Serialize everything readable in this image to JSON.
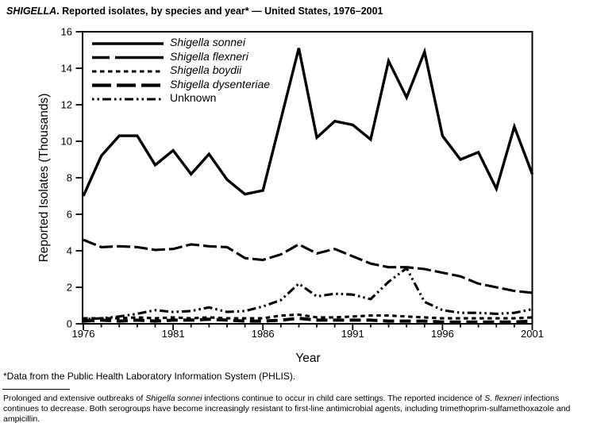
{
  "title": {
    "parts": [
      {
        "t": "SHIGELLA",
        "i": true
      },
      {
        "t": ". Reported isolates, by species and year* — United States, 1976–2001"
      }
    ]
  },
  "chart_data": {
    "type": "line",
    "title": "SHIGELLA. Reported isolates, by species and year* — United States, 1976–2001",
    "xlabel": "Year",
    "ylabel": "Reported Isolates (Thousands)",
    "xlim": [
      1976,
      2001
    ],
    "ylim": [
      0,
      16
    ],
    "yticks": [
      0,
      2,
      4,
      6,
      8,
      10,
      12,
      14,
      16
    ],
    "xticks_labeled": [
      1976,
      1981,
      1986,
      1991,
      1996,
      2001
    ],
    "grid": false,
    "legend_position": "top-left-inside",
    "line_color": "#000000",
    "background": "#ffffff",
    "x": [
      1976,
      1977,
      1978,
      1979,
      1980,
      1981,
      1982,
      1983,
      1984,
      1985,
      1986,
      1987,
      1988,
      1989,
      1990,
      1991,
      1992,
      1993,
      1994,
      1995,
      1996,
      1997,
      1998,
      1999,
      2000,
      2001
    ],
    "series": [
      {
        "name": "Shigella sonnei",
        "line_style": "solid",
        "values": [
          7.0,
          9.2,
          10.3,
          10.3,
          8.7,
          9.5,
          8.2,
          9.3,
          7.9,
          7.1,
          7.3,
          11.2,
          15.1,
          10.2,
          11.1,
          10.9,
          10.1,
          14.4,
          12.4,
          14.9,
          10.3,
          9.0,
          9.4,
          7.4,
          10.8,
          8.2
        ]
      },
      {
        "name": "Shigella flexneri",
        "line_style": "long-dash",
        "values": [
          4.6,
          4.2,
          4.25,
          4.2,
          4.05,
          4.1,
          4.35,
          4.25,
          4.2,
          3.6,
          3.5,
          3.8,
          4.35,
          3.85,
          4.1,
          3.7,
          3.3,
          3.1,
          3.1,
          3.0,
          2.8,
          2.6,
          2.2,
          2.0,
          1.8,
          1.7
        ]
      },
      {
        "name": "Shigella boydii",
        "line_style": "short-dash",
        "values": [
          0.3,
          0.3,
          0.3,
          0.35,
          0.3,
          0.35,
          0.3,
          0.35,
          0.3,
          0.3,
          0.3,
          0.45,
          0.5,
          0.35,
          0.35,
          0.4,
          0.45,
          0.45,
          0.4,
          0.35,
          0.3,
          0.3,
          0.3,
          0.3,
          0.3,
          0.35
        ]
      },
      {
        "name": "Shigella dysenteriae",
        "line_style": "heavy-long-dash",
        "values": [
          0.15,
          0.2,
          0.15,
          0.2,
          0.15,
          0.2,
          0.2,
          0.25,
          0.2,
          0.15,
          0.15,
          0.2,
          0.3,
          0.2,
          0.2,
          0.2,
          0.2,
          0.15,
          0.15,
          0.15,
          0.1,
          0.1,
          0.1,
          0.1,
          0.1,
          0.15
        ]
      },
      {
        "name": "Unknown",
        "line_style": "dash-dot-dot",
        "values": [
          0.25,
          0.3,
          0.4,
          0.55,
          0.75,
          0.65,
          0.7,
          0.9,
          0.65,
          0.7,
          0.95,
          1.3,
          2.2,
          1.5,
          1.65,
          1.6,
          1.35,
          2.3,
          3.05,
          1.2,
          0.75,
          0.6,
          0.6,
          0.55,
          0.6,
          0.8
        ]
      }
    ]
  },
  "footnotes": {
    "source": "*Data from the Public Health Laboratory Information System (PHLIS).",
    "note_parts": [
      {
        "t": "Prolonged and extensive outbreaks of "
      },
      {
        "t": "Shigella sonnei",
        "i": true
      },
      {
        "t": " infections continue to occur in child care settings. The reported incidence of "
      },
      {
        "t": "S. flexneri",
        "i": true
      },
      {
        "t": " infections continues to decrease. Both serogroups have become increasingly resistant to first-line antimicrobial agents, including trimethoprim-sulfamethoxazole and ampicillin."
      }
    ]
  }
}
